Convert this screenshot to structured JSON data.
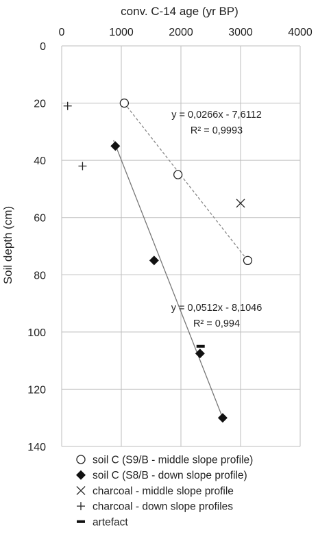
{
  "chart_data": {
    "type": "scatter",
    "xlabel": "conv. C-14 age (yr BP)",
    "ylabel": "Soil depth (cm)",
    "xlim": [
      0,
      4000
    ],
    "ylim": [
      0,
      140
    ],
    "y_inverted": true,
    "x_axis_position": "top",
    "x_ticks": [
      0,
      1000,
      2000,
      3000,
      4000
    ],
    "y_ticks": [
      0,
      20,
      40,
      60,
      80,
      100,
      120,
      140
    ],
    "grid": true,
    "legend_position": "bottom",
    "series": [
      {
        "name": "soil C (S9/B - middle slope profile)",
        "marker": "open-circle",
        "points": [
          {
            "x": 1050,
            "y": 20
          },
          {
            "x": 1950,
            "y": 45
          },
          {
            "x": 3120,
            "y": 75
          }
        ]
      },
      {
        "name": "soil C (S8/B - down slope profile)",
        "marker": "filled-diamond",
        "points": [
          {
            "x": 900,
            "y": 35
          },
          {
            "x": 1550,
            "y": 75
          },
          {
            "x": 2320,
            "y": 107.5
          },
          {
            "x": 2700,
            "y": 130
          }
        ]
      },
      {
        "name": "charcoal - middle slope profile",
        "marker": "x",
        "points": [
          {
            "x": 3000,
            "y": 55
          }
        ]
      },
      {
        "name": "charcoal - down slope profiles",
        "marker": "plus",
        "points": [
          {
            "x": 100,
            "y": 21
          },
          {
            "x": 350,
            "y": 42
          }
        ]
      },
      {
        "name": "artefact",
        "marker": "dash",
        "points": [
          {
            "x": 2330,
            "y": 105
          }
        ]
      }
    ],
    "trendlines": [
      {
        "series": "soil C (S9/B - middle slope profile)",
        "style": "dashed",
        "from": {
          "x": 1050,
          "y": 20
        },
        "to": {
          "x": 3120,
          "y": 75
        },
        "equation": "y = 0,0266x - 7,6112",
        "r2": "R² = 0,9993"
      },
      {
        "series": "soil C (S8/B - down slope profile)",
        "style": "solid",
        "from": {
          "x": 870,
          "y": 33
        },
        "to": {
          "x": 2700,
          "y": 130
        },
        "equation": "y = 0,0512x - 8,1046",
        "r2": "R² = 0,994"
      }
    ]
  }
}
